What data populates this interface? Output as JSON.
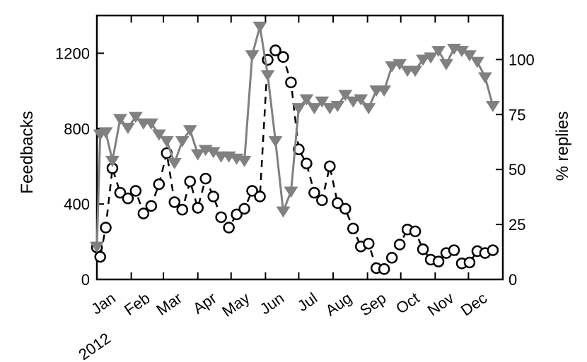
{
  "chart_data": {
    "type": "line",
    "x_labels": [
      "Jan",
      "Feb",
      "Mar",
      "Apr",
      "May",
      "Jun",
      "Jul",
      "Aug",
      "Sep",
      "Oct",
      "Nov",
      "Dec"
    ],
    "year_label": "2012",
    "left_axis": {
      "label": "Feedbacks",
      "range": [
        0,
        1400
      ],
      "ticks": [
        0,
        400,
        800,
        1200
      ],
      "tick_labels": [
        "0",
        "400",
        "800",
        "1200"
      ]
    },
    "right_axis": {
      "label": "% replies",
      "range": [
        0,
        120
      ],
      "ticks": [
        0,
        25,
        50,
        75,
        100
      ],
      "tick_labels": [
        "0",
        "25",
        "50",
        "75",
        "100"
      ]
    },
    "grid": false,
    "series": [
      {
        "axis": "left",
        "style": "dashed-black-circles",
        "color": "#000000",
        "points": [
          [
            "2012-01-01",
            170
          ],
          [
            "2012-01-04",
            120
          ],
          [
            "2012-01-09",
            275
          ],
          [
            "2012-01-15",
            590
          ],
          [
            "2012-01-22",
            460
          ],
          [
            "2012-01-29",
            430
          ],
          [
            "2012-02-05",
            470
          ],
          [
            "2012-02-12",
            350
          ],
          [
            "2012-02-19",
            390
          ],
          [
            "2012-02-26",
            505
          ],
          [
            "2012-03-04",
            670
          ],
          [
            "2012-03-11",
            410
          ],
          [
            "2012-03-18",
            370
          ],
          [
            "2012-03-25",
            520
          ],
          [
            "2012-04-01",
            380
          ],
          [
            "2012-04-08",
            535
          ],
          [
            "2012-04-15",
            440
          ],
          [
            "2012-04-22",
            330
          ],
          [
            "2012-04-29",
            275
          ],
          [
            "2012-05-06",
            345
          ],
          [
            "2012-05-13",
            375
          ],
          [
            "2012-05-20",
            470
          ],
          [
            "2012-05-27",
            440
          ],
          [
            "2012-06-03",
            1165
          ],
          [
            "2012-06-10",
            1215
          ],
          [
            "2012-06-17",
            1180
          ],
          [
            "2012-06-24",
            1045
          ],
          [
            "2012-07-01",
            690
          ],
          [
            "2012-07-08",
            615
          ],
          [
            "2012-07-15",
            460
          ],
          [
            "2012-07-22",
            420
          ],
          [
            "2012-07-29",
            600
          ],
          [
            "2012-08-05",
            405
          ],
          [
            "2012-08-12",
            375
          ],
          [
            "2012-08-19",
            270
          ],
          [
            "2012-08-26",
            175
          ],
          [
            "2012-09-02",
            190
          ],
          [
            "2012-09-09",
            60
          ],
          [
            "2012-09-16",
            55
          ],
          [
            "2012-09-23",
            115
          ],
          [
            "2012-09-30",
            185
          ],
          [
            "2012-10-07",
            265
          ],
          [
            "2012-10-14",
            255
          ],
          [
            "2012-10-21",
            160
          ],
          [
            "2012-10-28",
            105
          ],
          [
            "2012-11-04",
            95
          ],
          [
            "2012-11-11",
            140
          ],
          [
            "2012-11-18",
            155
          ],
          [
            "2012-11-25",
            85
          ],
          [
            "2012-12-02",
            90
          ],
          [
            "2012-12-09",
            150
          ],
          [
            "2012-12-16",
            140
          ],
          [
            "2012-12-23",
            155
          ]
        ]
      },
      {
        "axis": "right",
        "style": "solid-gray-triangles",
        "color": "#808080",
        "points": [
          [
            "2012-01-01",
            15
          ],
          [
            "2012-01-04",
            66
          ],
          [
            "2012-01-09",
            67
          ],
          [
            "2012-01-15",
            54
          ],
          [
            "2012-01-22",
            73
          ],
          [
            "2012-01-29",
            69
          ],
          [
            "2012-02-05",
            74
          ],
          [
            "2012-02-12",
            71
          ],
          [
            "2012-02-19",
            71
          ],
          [
            "2012-02-26",
            66
          ],
          [
            "2012-03-04",
            63
          ],
          [
            "2012-03-11",
            53
          ],
          [
            "2012-03-18",
            63
          ],
          [
            "2012-03-25",
            68
          ],
          [
            "2012-04-01",
            57
          ],
          [
            "2012-04-08",
            59
          ],
          [
            "2012-04-15",
            58
          ],
          [
            "2012-04-22",
            56
          ],
          [
            "2012-04-29",
            56
          ],
          [
            "2012-05-06",
            55
          ],
          [
            "2012-05-13",
            54
          ],
          [
            "2012-05-20",
            102
          ],
          [
            "2012-05-27",
            115
          ],
          [
            "2012-06-03",
            93
          ],
          [
            "2012-06-10",
            63
          ],
          [
            "2012-06-17",
            31
          ],
          [
            "2012-06-24",
            40
          ],
          [
            "2012-07-01",
            78
          ],
          [
            "2012-07-08",
            82
          ],
          [
            "2012-07-15",
            78
          ],
          [
            "2012-07-22",
            81
          ],
          [
            "2012-07-29",
            78
          ],
          [
            "2012-08-05",
            79
          ],
          [
            "2012-08-12",
            84
          ],
          [
            "2012-08-19",
            81
          ],
          [
            "2012-08-26",
            82
          ],
          [
            "2012-09-02",
            78
          ],
          [
            "2012-09-09",
            86
          ],
          [
            "2012-09-16",
            86
          ],
          [
            "2012-09-23",
            97
          ],
          [
            "2012-09-30",
            98
          ],
          [
            "2012-10-07",
            95
          ],
          [
            "2012-10-14",
            95
          ],
          [
            "2012-10-21",
            100
          ],
          [
            "2012-10-28",
            101
          ],
          [
            "2012-11-04",
            104
          ],
          [
            "2012-11-11",
            98
          ],
          [
            "2012-11-18",
            105
          ],
          [
            "2012-11-25",
            104
          ],
          [
            "2012-12-02",
            102
          ],
          [
            "2012-12-09",
            99
          ],
          [
            "2012-12-16",
            92
          ],
          [
            "2012-12-23",
            79
          ]
        ]
      }
    ]
  }
}
